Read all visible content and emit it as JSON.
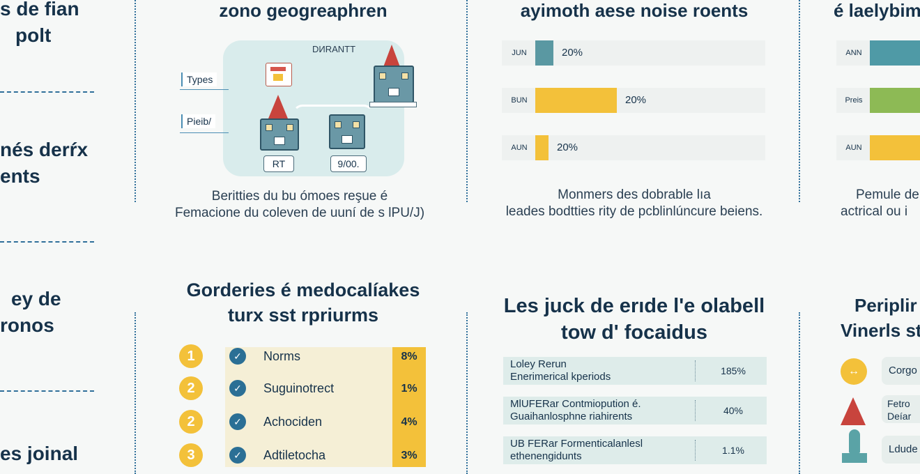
{
  "left_column": {
    "headings": [
      {
        "line1": "s de fian",
        "line2": "polt"
      },
      {
        "line1": "nés derŕx",
        "line2": "ents"
      },
      {
        "line1": "ey de",
        "line2": "ronos"
      },
      {
        "line1": "es joinal",
        "line2": ""
      }
    ]
  },
  "panel_map": {
    "title": "zono geogreaphren",
    "map_label": "DИRANTT",
    "tags": [
      "Types",
      "Pieib/"
    ],
    "boxes": [
      "RT",
      "9/00."
    ],
    "caption_line1": "Beritties du bu ómoes reşue é",
    "caption_line2": "Femacione du coleven de uuní de s lPU/J)"
  },
  "panel_bars_mid": {
    "title": "ayimoth aese noise roents",
    "bars": [
      {
        "label": "JUN",
        "value": 20,
        "value_label": "20%",
        "fill_width_pct": 7,
        "color": "#5a98a2"
      },
      {
        "label": "BUN",
        "value": 20,
        "value_label": "20%",
        "fill_width_pct": 31,
        "color": "#f3c13a"
      },
      {
        "label": "AUN",
        "value": 20,
        "value_label": "20%",
        "fill_width_pct": 5,
        "color": "#f3c13a"
      }
    ],
    "caption_line1": "Monmers des dobrable lıa",
    "caption_line2": "leades bodtties rity de pcblinlúncure beiens."
  },
  "panel_bars_right": {
    "title": "é laelybim",
    "bars": [
      {
        "label": "ANN",
        "color": "#4f9aa6"
      },
      {
        "label": "Preis",
        "color": "#8dba55"
      },
      {
        "label": "AUN",
        "color": "#f3c13a"
      }
    ],
    "caption_line1": "Pemule de",
    "caption_line2": "actrical ou i"
  },
  "panel_list": {
    "title_line1": "Gorderies é medocalíakes",
    "title_line2": "turx sst rpriurms",
    "items": [
      {
        "num": "1",
        "text": "Norms",
        "pct": "8%"
      },
      {
        "num": "2",
        "text": "Suguinotrect",
        "pct": "1%"
      },
      {
        "num": "2",
        "text": "Achociden",
        "pct": "4%"
      },
      {
        "num": "3",
        "text": "Adtiletocha",
        "pct": "3%"
      }
    ]
  },
  "panel_table": {
    "title_line1": "Les juck de erıde l'e olabell",
    "title_line2": "tow d' focaidus",
    "rows": [
      {
        "line1": "Loley Rerun",
        "line2": "Enerimerical kperiods",
        "value": "185%"
      },
      {
        "line1": "MlUFERar Contmiopution é.",
        "line2": "Guaihanlosphne riahirents",
        "value": "40%"
      },
      {
        "line1": "UB FERar Formenticalanlesl",
        "line2": "ethenengidunts",
        "value": "1.1%"
      }
    ]
  },
  "panel_right_bottom": {
    "title_line1": "Periplir",
    "title_line2": "Vinerls st",
    "items": [
      {
        "line1": "Corgo",
        "line2": ""
      },
      {
        "line1": "Fetro",
        "line2": "Deíar"
      },
      {
        "line1": "Ldude",
        "line2": ""
      }
    ]
  }
}
